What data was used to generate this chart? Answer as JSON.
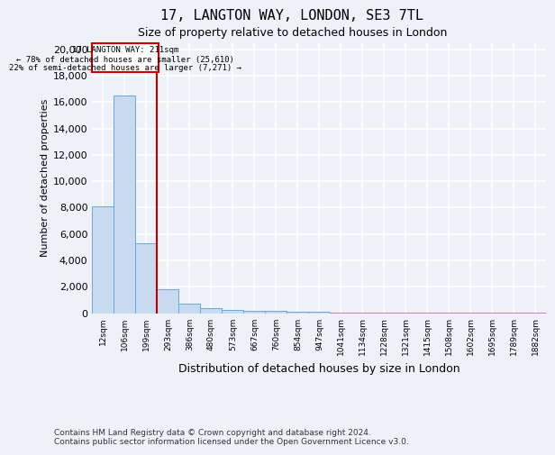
{
  "title1": "17, LANGTON WAY, LONDON, SE3 7TL",
  "title2": "Size of property relative to detached houses in London",
  "xlabel": "Distribution of detached houses by size in London",
  "ylabel": "Number of detached properties",
  "categories": [
    "12sqm",
    "106sqm",
    "199sqm",
    "293sqm",
    "386sqm",
    "480sqm",
    "573sqm",
    "667sqm",
    "760sqm",
    "854sqm",
    "947sqm",
    "1041sqm",
    "1134sqm",
    "1228sqm",
    "1321sqm",
    "1415sqm",
    "1508sqm",
    "1602sqm",
    "1695sqm",
    "1789sqm",
    "1882sqm"
  ],
  "values": [
    8100,
    16500,
    5300,
    1800,
    750,
    350,
    250,
    180,
    150,
    100,
    80,
    60,
    50,
    40,
    30,
    25,
    20,
    15,
    15,
    12,
    10
  ],
  "bar_color": "#c8daf0",
  "bar_edge_color": "#6aaad4",
  "annotation_text_line1": "17 LANGTON WAY: 211sqm",
  "annotation_text_line2": "← 78% of detached houses are smaller (25,610)",
  "annotation_text_line3": "22% of semi-detached houses are larger (7,271) →",
  "annotation_box_color": "#ffffff",
  "annotation_box_edge_color": "#cc0000",
  "vline_color": "#bb0000",
  "footnote1": "Contains HM Land Registry data © Crown copyright and database right 2024.",
  "footnote2": "Contains public sector information licensed under the Open Government Licence v3.0.",
  "ylim": [
    0,
    20500
  ],
  "yticks": [
    0,
    2000,
    4000,
    6000,
    8000,
    10000,
    12000,
    14000,
    16000,
    18000,
    20000
  ],
  "background_color": "#eef2f8",
  "grid_color": "#d8dfe8"
}
